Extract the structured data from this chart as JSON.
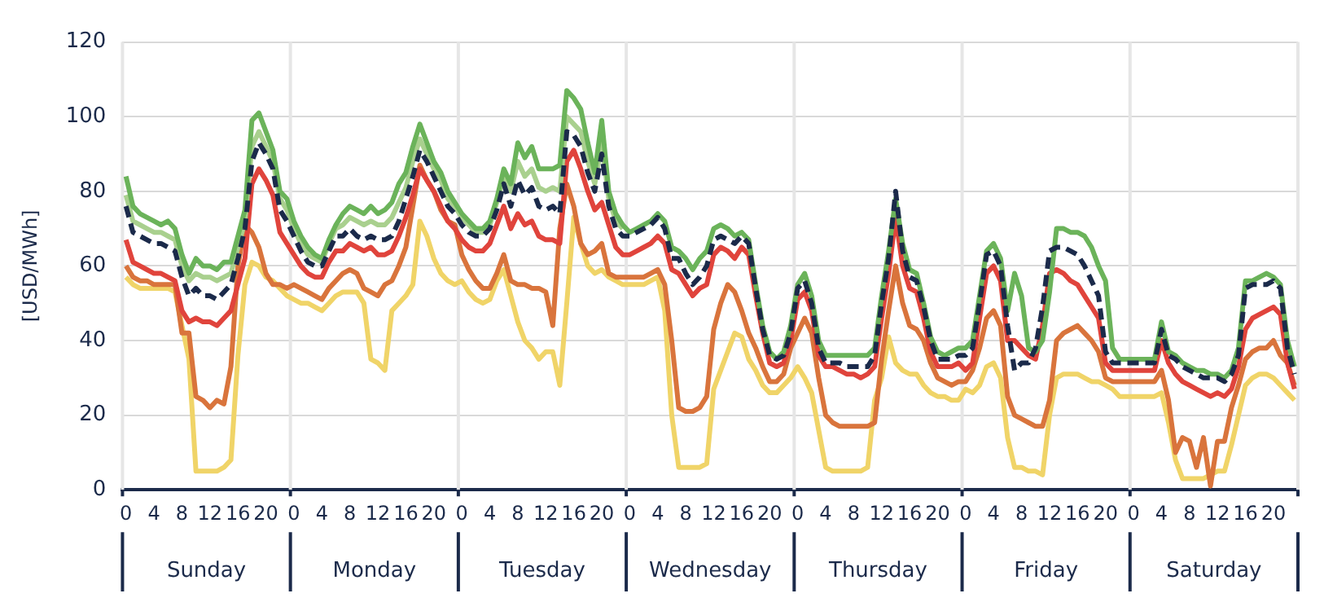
{
  "chart_data": {
    "type": "line",
    "ylabel": "[USD/MWh]",
    "ylim": [
      0,
      120
    ],
    "yticks": [
      0,
      20,
      40,
      60,
      80,
      100,
      120
    ],
    "grid": "y",
    "legend": false,
    "marker": "none",
    "categories": [
      "0",
      null,
      null,
      null,
      "4",
      null,
      null,
      null,
      "8",
      null,
      null,
      null,
      "12",
      null,
      null,
      null,
      "16",
      null,
      null,
      null,
      "20",
      null,
      null,
      null,
      "0",
      null,
      null,
      null,
      "4",
      null,
      null,
      null,
      "8",
      null,
      null,
      null,
      "12",
      null,
      null,
      null,
      "16",
      null,
      null,
      null,
      "20",
      null,
      null,
      null,
      "0",
      null,
      null,
      null,
      "4",
      null,
      null,
      null,
      "8",
      null,
      null,
      null,
      "12",
      null,
      null,
      null,
      "16",
      null,
      null,
      null,
      "20",
      null,
      null,
      null,
      "0",
      null,
      null,
      null,
      "4",
      null,
      null,
      null,
      "8",
      null,
      null,
      null,
      "12",
      null,
      null,
      null,
      "16",
      null,
      null,
      null,
      "20",
      null,
      null,
      null,
      "0",
      null,
      null,
      null,
      "4",
      null,
      null,
      null,
      "8",
      null,
      null,
      null,
      "12",
      null,
      null,
      null,
      "16",
      null,
      null,
      null,
      "20",
      null,
      null,
      null,
      "0",
      null,
      null,
      null,
      "4",
      null,
      null,
      null,
      "8",
      null,
      null,
      null,
      "12",
      null,
      null,
      null,
      "16",
      null,
      null,
      null,
      "20",
      null,
      null,
      null,
      "0",
      null,
      null,
      null,
      "4",
      null,
      null,
      null,
      "8",
      null,
      null,
      null,
      "12",
      null,
      null,
      null,
      "16",
      null,
      null,
      null,
      "20",
      null,
      null,
      null
    ],
    "annotations": [
      "Sunday",
      "Monday",
      "Tuesday",
      "Wednesday",
      "Thursday",
      "Friday",
      "Saturday"
    ],
    "series": [
      {
        "color": "#f0d468",
        "values": [
          57,
          55,
          54,
          54,
          54,
          54,
          54,
          53,
          44,
          35,
          5,
          5,
          5,
          5,
          6,
          8,
          36,
          55,
          61,
          60,
          57,
          56,
          54,
          52,
          51,
          50,
          50,
          49,
          48,
          50,
          52,
          53,
          53,
          53,
          50,
          35,
          34,
          32,
          48,
          50,
          52,
          55,
          72,
          68,
          62,
          58,
          56,
          55,
          56,
          53,
          51,
          50,
          51,
          56,
          59,
          52,
          45,
          40,
          38,
          35,
          37,
          37,
          28,
          50,
          73,
          66,
          60,
          58,
          59,
          57,
          56,
          55,
          55,
          55,
          55,
          56,
          57,
          48,
          20,
          6,
          6,
          6,
          6,
          7,
          27,
          32,
          37,
          42,
          41,
          35,
          32,
          28,
          26,
          26,
          28,
          30,
          33,
          30,
          26,
          16,
          6,
          5,
          5,
          5,
          5,
          5,
          6,
          24,
          30,
          41,
          34,
          32,
          31,
          31,
          28,
          26,
          25,
          25,
          24,
          24,
          27,
          26,
          28,
          33,
          34,
          30,
          14,
          6,
          6,
          5,
          5,
          4,
          20,
          30,
          31,
          31,
          31,
          30,
          29,
          29,
          28,
          27,
          25,
          25,
          25,
          25,
          25,
          25,
          26,
          18,
          8,
          3,
          3,
          3,
          3,
          4,
          5,
          5,
          12,
          20,
          28,
          30,
          31,
          31,
          30,
          28,
          26,
          24
        ]
      },
      {
        "color": "#d9743c",
        "values": [
          60,
          57,
          56,
          56,
          55,
          55,
          55,
          55,
          42,
          42,
          25,
          24,
          22,
          24,
          23,
          33,
          60,
          71,
          69,
          65,
          58,
          55,
          55,
          54,
          55,
          54,
          53,
          52,
          51,
          54,
          56,
          58,
          59,
          58,
          54,
          53,
          52,
          55,
          56,
          60,
          65,
          76,
          87,
          83,
          80,
          75,
          72,
          71,
          63,
          59,
          56,
          54,
          54,
          58,
          63,
          56,
          55,
          55,
          54,
          54,
          53,
          44,
          70,
          82,
          76,
          66,
          63,
          64,
          66,
          58,
          57,
          57,
          57,
          57,
          57,
          58,
          59,
          55,
          40,
          22,
          21,
          21,
          22,
          25,
          43,
          50,
          55,
          53,
          48,
          42,
          38,
          33,
          29,
          29,
          31,
          38,
          42,
          46,
          42,
          30,
          20,
          18,
          17,
          17,
          17,
          17,
          17,
          18,
          35,
          48,
          60,
          50,
          44,
          43,
          40,
          34,
          30,
          29,
          28,
          29,
          29,
          32,
          38,
          46,
          48,
          44,
          25,
          20,
          19,
          18,
          17,
          17,
          24,
          40,
          42,
          43,
          44,
          42,
          40,
          37,
          30,
          29,
          29,
          29,
          29,
          29,
          29,
          29,
          32,
          24,
          10,
          14,
          13,
          6,
          14,
          1,
          13,
          13,
          22,
          28,
          35,
          37,
          38,
          38,
          40,
          36,
          34,
          28
        ]
      },
      {
        "color": "#e0443c",
        "values": [
          67,
          61,
          60,
          59,
          58,
          58,
          57,
          56,
          48,
          45,
          46,
          45,
          45,
          44,
          46,
          48,
          55,
          62,
          82,
          86,
          83,
          79,
          69,
          66,
          63,
          60,
          58,
          57,
          57,
          61,
          64,
          64,
          66,
          65,
          64,
          65,
          63,
          63,
          64,
          68,
          73,
          79,
          86,
          83,
          80,
          76,
          72,
          70,
          67,
          65,
          64,
          64,
          66,
          71,
          76,
          70,
          74,
          71,
          72,
          68,
          67,
          67,
          66,
          88,
          91,
          86,
          80,
          75,
          77,
          71,
          65,
          63,
          63,
          64,
          65,
          66,
          68,
          66,
          59,
          58,
          55,
          52,
          54,
          55,
          63,
          65,
          64,
          62,
          65,
          63,
          52,
          42,
          34,
          33,
          34,
          40,
          51,
          53,
          48,
          36,
          33,
          33,
          32,
          31,
          31,
          30,
          31,
          33,
          46,
          58,
          73,
          60,
          54,
          53,
          46,
          37,
          33,
          33,
          33,
          34,
          32,
          34,
          46,
          58,
          60,
          56,
          40,
          40,
          38,
          36,
          35,
          44,
          58,
          59,
          58,
          56,
          55,
          52,
          49,
          46,
          34,
          32,
          32,
          32,
          32,
          32,
          32,
          32,
          40,
          34,
          31,
          29,
          28,
          27,
          26,
          25,
          26,
          25,
          27,
          33,
          43,
          46,
          47,
          48,
          49,
          47,
          34,
          27
        ]
      },
      {
        "color": "#a9d08e",
        "values": [
          79,
          72,
          71,
          70,
          69,
          69,
          68,
          67,
          60,
          56,
          58,
          57,
          57,
          56,
          57,
          58,
          65,
          72,
          92,
          96,
          92,
          88,
          78,
          75,
          70,
          66,
          63,
          62,
          61,
          66,
          70,
          71,
          73,
          72,
          71,
          72,
          71,
          71,
          73,
          77,
          81,
          88,
          94,
          90,
          86,
          83,
          78,
          76,
          73,
          71,
          69,
          69,
          71,
          77,
          84,
          80,
          88,
          84,
          86,
          81,
          80,
          81,
          80,
          100,
          98,
          96,
          88,
          82,
          93,
          78,
          72,
          70,
          null,
          null,
          null,
          null,
          null,
          null,
          null,
          null,
          null,
          null,
          null,
          null,
          null,
          null,
          null,
          null,
          null,
          null,
          null,
          null,
          null,
          null,
          null,
          null,
          null,
          null,
          null,
          null,
          null,
          null,
          null,
          null,
          null,
          null,
          null,
          null,
          null,
          null,
          null,
          null,
          null,
          null,
          null,
          null,
          null,
          null,
          null,
          null,
          null,
          null,
          null,
          null,
          null,
          null,
          null,
          null,
          null,
          null,
          null,
          null,
          null,
          null,
          null,
          null,
          null,
          null,
          null,
          null,
          null,
          null,
          null,
          null,
          null,
          null,
          null,
          null,
          null,
          null,
          null,
          null,
          null,
          null,
          null,
          null,
          null,
          null,
          null,
          null,
          null,
          null,
          null,
          null,
          null,
          null,
          null,
          null
        ]
      },
      {
        "color": "#6bb35a",
        "values": [
          84,
          76,
          74,
          73,
          72,
          71,
          72,
          70,
          63,
          58,
          62,
          60,
          60,
          59,
          61,
          61,
          68,
          75,
          99,
          101,
          96,
          91,
          80,
          78,
          72,
          68,
          65,
          63,
          62,
          67,
          71,
          74,
          76,
          75,
          74,
          76,
          74,
          75,
          77,
          82,
          85,
          92,
          98,
          93,
          88,
          85,
          80,
          77,
          74,
          72,
          70,
          70,
          72,
          78,
          86,
          82,
          93,
          89,
          92,
          86,
          86,
          86,
          87,
          107,
          105,
          102,
          93,
          85,
          99,
          80,
          74,
          71,
          69,
          70,
          71,
          72,
          74,
          72,
          65,
          64,
          62,
          59,
          62,
          64,
          70,
          71,
          70,
          68,
          69,
          67,
          55,
          44,
          37,
          35,
          37,
          44,
          55,
          58,
          52,
          40,
          36,
          36,
          36,
          36,
          36,
          36,
          36,
          38,
          52,
          64,
          78,
          66,
          59,
          58,
          50,
          41,
          37,
          36,
          37,
          38,
          38,
          40,
          52,
          64,
          66,
          62,
          48,
          58,
          52,
          38,
          37,
          40,
          53,
          70,
          70,
          69,
          69,
          68,
          65,
          60,
          56,
          38,
          35,
          35,
          35,
          35,
          35,
          35,
          45,
          37,
          36,
          34,
          33,
          32,
          32,
          31,
          31,
          30,
          32,
          38,
          56,
          56,
          57,
          58,
          57,
          55,
          40,
          33
        ]
      },
      {
        "color": "#1b2a4a",
        "line_style": "dashed",
        "values": [
          76,
          69,
          68,
          67,
          66,
          66,
          65,
          64,
          57,
          52,
          54,
          52,
          52,
          51,
          53,
          55,
          62,
          70,
          88,
          93,
          90,
          86,
          75,
          72,
          68,
          64,
          61,
          60,
          60,
          64,
          68,
          68,
          70,
          68,
          67,
          68,
          67,
          67,
          68,
          72,
          78,
          84,
          91,
          88,
          84,
          80,
          76,
          74,
          71,
          69,
          68,
          68,
          70,
          75,
          82,
          76,
          83,
          79,
          81,
          76,
          75,
          76,
          74,
          96,
          95,
          92,
          85,
          80,
          90,
          76,
          70,
          68,
          68,
          69,
          70,
          71,
          73,
          70,
          62,
          62,
          58,
          55,
          57,
          60,
          67,
          68,
          67,
          66,
          68,
          66,
          54,
          43,
          36,
          35,
          36,
          42,
          54,
          56,
          50,
          38,
          34,
          34,
          34,
          33,
          33,
          33,
          33,
          36,
          50,
          62,
          80,
          64,
          57,
          56,
          49,
          40,
          35,
          35,
          35,
          36,
          36,
          38,
          50,
          63,
          64,
          60,
          44,
          32,
          34,
          34,
          38,
          49,
          64,
          65,
          65,
          64,
          63,
          60,
          56,
          52,
          37,
          34,
          34,
          34,
          34,
          34,
          34,
          34,
          43,
          36,
          35,
          33,
          32,
          31,
          30,
          30,
          30,
          29,
          31,
          36,
          54,
          55,
          55,
          55,
          56,
          54,
          38,
          31
        ]
      }
    ]
  }
}
